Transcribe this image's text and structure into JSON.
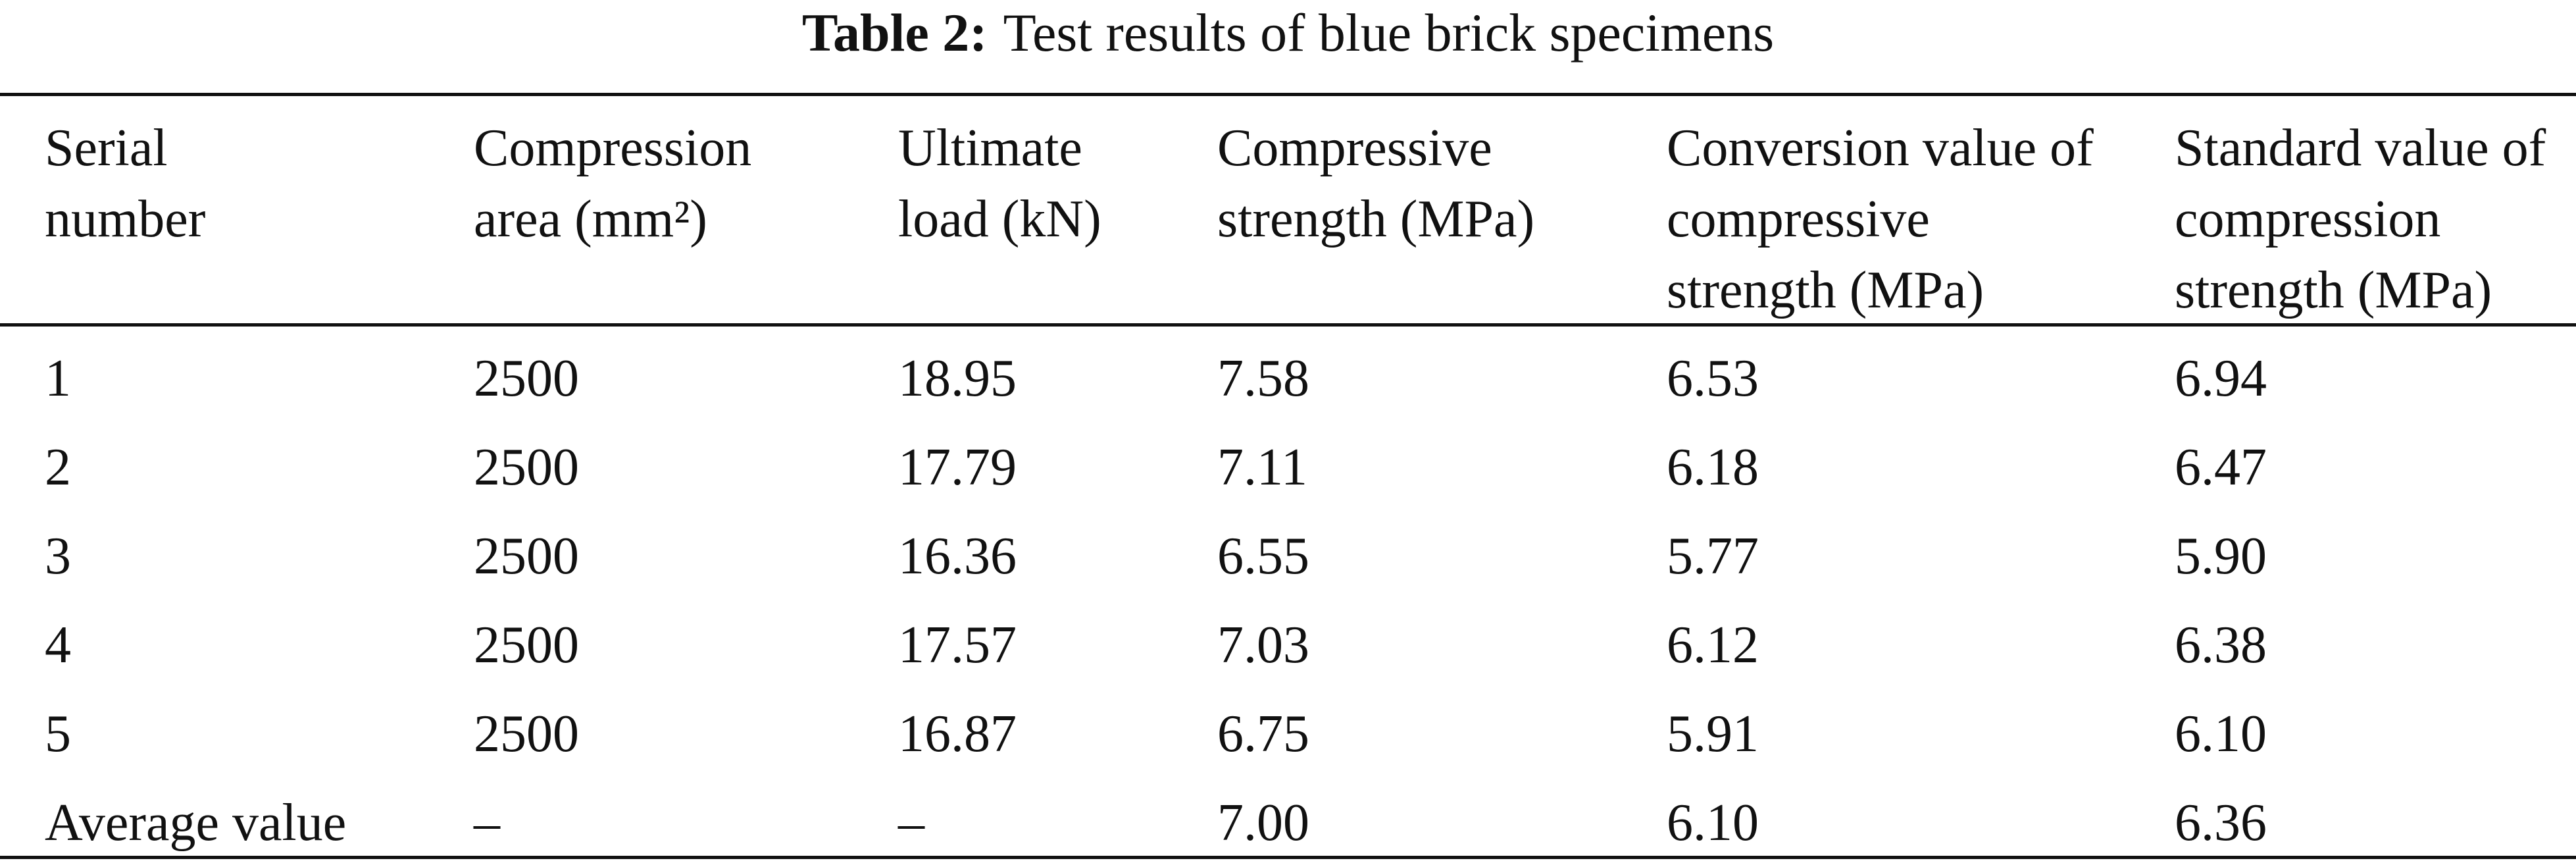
{
  "caption": {
    "label": "Table 2:",
    "text": "Test results of blue brick specimens"
  },
  "table": {
    "header": [
      "Serial number",
      "Compression area (mm²)",
      "Ultimate load (kN)",
      "Compressive strength (MPa)",
      "Conversion value of compressive strength (MPa)",
      "Standard value of compression strength (MPa)"
    ],
    "rows": [
      [
        "1",
        "2500",
        "18.95",
        "7.58",
        "6.53",
        "6.94"
      ],
      [
        "2",
        "2500",
        "17.79",
        "7.11",
        "6.18",
        "6.47"
      ],
      [
        "3",
        "2500",
        "16.36",
        "6.55",
        "5.77",
        "5.90"
      ],
      [
        "4",
        "2500",
        "17.57",
        "7.03",
        "6.12",
        "6.38"
      ],
      [
        "5",
        "2500",
        "16.87",
        "6.75",
        "5.91",
        "6.10"
      ],
      [
        "Average value",
        "–",
        "–",
        "7.00",
        "6.10",
        "6.36"
      ]
    ]
  }
}
